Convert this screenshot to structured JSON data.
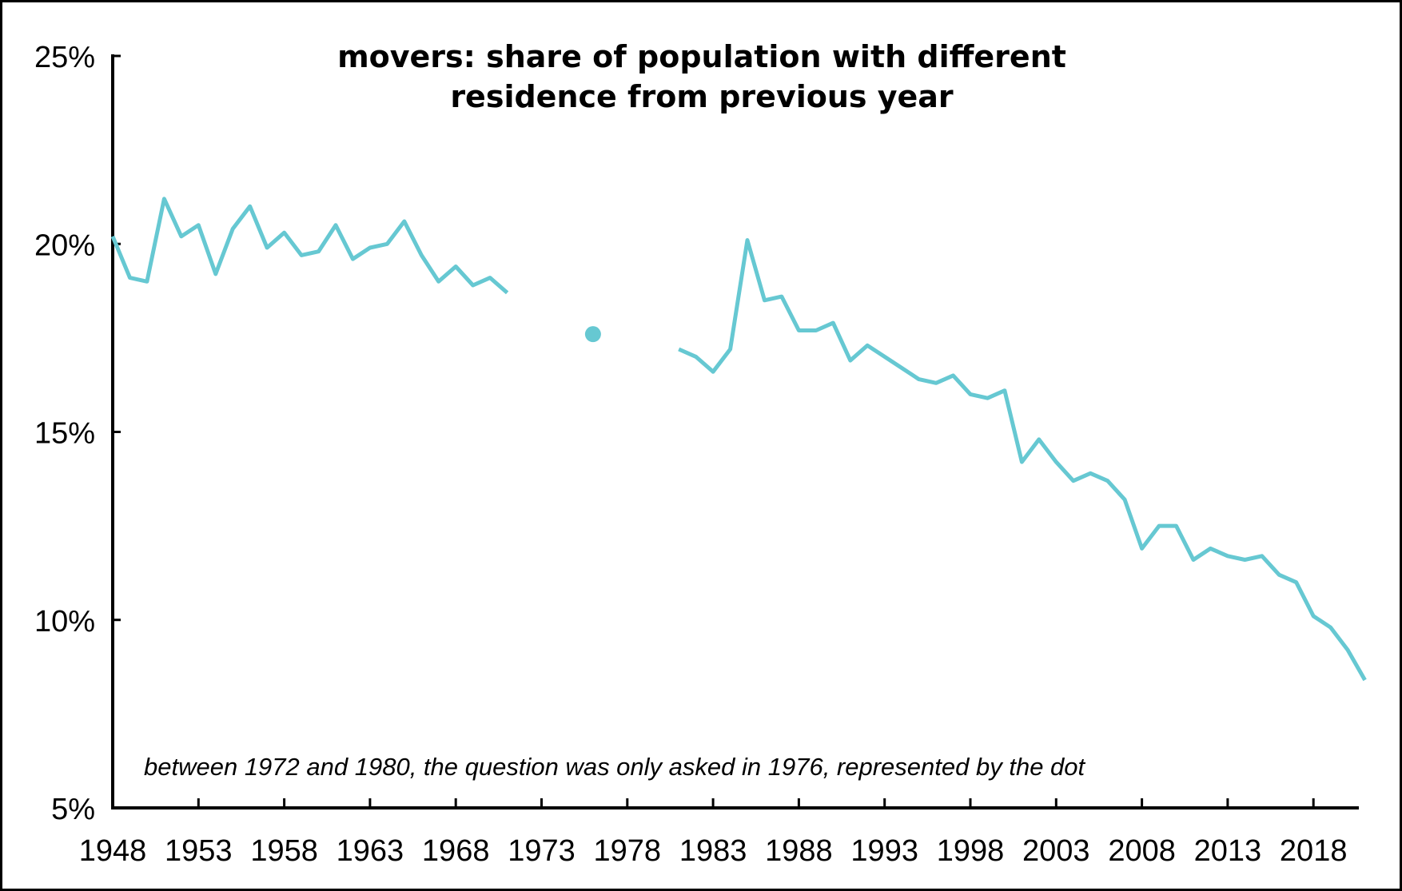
{
  "chart_data": {
    "type": "line",
    "title_lines": [
      "movers: share of population with different",
      "residence from previous year"
    ],
    "annotation": "between 1972 and 1980, the question was only asked in 1976, represented by the dot",
    "xlabel": "",
    "ylabel": "",
    "xlim": [
      1948,
      2021
    ],
    "ylim": [
      5,
      25
    ],
    "x_ticks": [
      "1948",
      "1953",
      "1958",
      "1963",
      "1968",
      "1973",
      "1978",
      "1983",
      "1988",
      "1993",
      "1998",
      "2003",
      "2008",
      "2013",
      "2018"
    ],
    "y_ticks": [
      "5%",
      "10%",
      "15%",
      "20%",
      "25%"
    ],
    "grid": false,
    "color": "#66c8d2",
    "series": [
      {
        "segment": "1948-1971",
        "x": [
          1948,
          1949,
          1950,
          1951,
          1952,
          1953,
          1954,
          1955,
          1956,
          1957,
          1958,
          1959,
          1960,
          1961,
          1962,
          1963,
          1964,
          1965,
          1966,
          1967,
          1968,
          1969,
          1970,
          1971
        ],
        "y": [
          20.2,
          19.1,
          19.0,
          21.2,
          20.2,
          20.5,
          19.2,
          20.4,
          21.0,
          19.9,
          20.3,
          19.7,
          19.8,
          20.5,
          19.6,
          19.9,
          20.0,
          20.6,
          19.7,
          19.0,
          19.4,
          18.9,
          19.1,
          18.7
        ]
      },
      {
        "segment": "1976",
        "style": "dot",
        "x": [
          1976
        ],
        "y": [
          17.6
        ]
      },
      {
        "segment": "1981-2021",
        "x": [
          1981,
          1982,
          1983,
          1984,
          1985,
          1986,
          1987,
          1988,
          1989,
          1990,
          1991,
          1992,
          1993,
          1994,
          1995,
          1996,
          1997,
          1998,
          1999,
          2000,
          2001,
          2002,
          2003,
          2004,
          2005,
          2006,
          2007,
          2008,
          2009,
          2010,
          2011,
          2012,
          2013,
          2014,
          2015,
          2016,
          2017,
          2018,
          2019,
          2020,
          2021
        ],
        "y": [
          17.2,
          17.0,
          16.6,
          17.2,
          20.1,
          18.5,
          18.6,
          17.7,
          17.7,
          17.9,
          16.9,
          17.3,
          17.0,
          16.7,
          16.4,
          16.3,
          16.5,
          16.0,
          15.9,
          16.1,
          14.2,
          14.8,
          14.2,
          13.7,
          13.9,
          13.7,
          13.2,
          11.9,
          12.5,
          12.5,
          11.6,
          11.9,
          11.7,
          11.6,
          11.7,
          11.2,
          11.0,
          10.1,
          9.8,
          9.2,
          8.4
        ]
      }
    ]
  }
}
